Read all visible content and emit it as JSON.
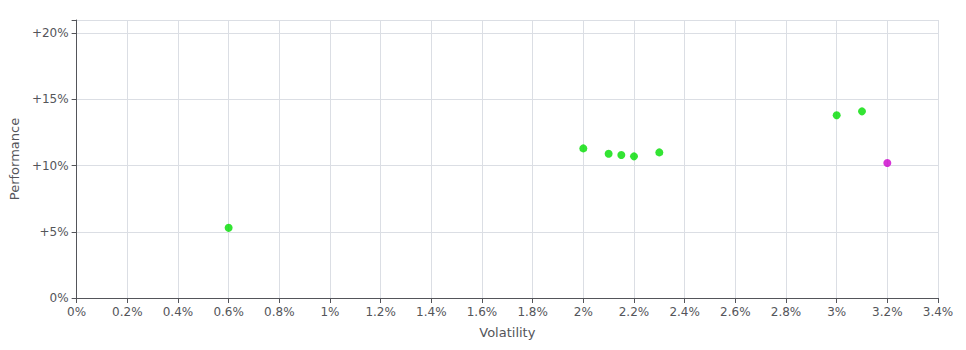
{
  "chart_data": {
    "type": "scatter",
    "xlabel": "Volatility",
    "ylabel": "Performance",
    "xlim": [
      0,
      0.034
    ],
    "ylim": [
      0,
      0.21
    ],
    "xticks": [
      {
        "value": 0,
        "label": "0%"
      },
      {
        "value": 0.002,
        "label": "0.2%"
      },
      {
        "value": 0.004,
        "label": "0.4%"
      },
      {
        "value": 0.006,
        "label": "0.6%"
      },
      {
        "value": 0.008,
        "label": "0.8%"
      },
      {
        "value": 0.01,
        "label": "1%"
      },
      {
        "value": 0.012,
        "label": "1.2%"
      },
      {
        "value": 0.014,
        "label": "1.4%"
      },
      {
        "value": 0.016,
        "label": "1.6%"
      },
      {
        "value": 0.018,
        "label": "1.8%"
      },
      {
        "value": 0.02,
        "label": "2%"
      },
      {
        "value": 0.022,
        "label": "2.2%"
      },
      {
        "value": 0.024,
        "label": "2.4%"
      },
      {
        "value": 0.026,
        "label": "2.6%"
      },
      {
        "value": 0.028,
        "label": "2.8%"
      },
      {
        "value": 0.03,
        "label": "3%"
      },
      {
        "value": 0.032,
        "label": "3.2%"
      },
      {
        "value": 0.034,
        "label": "3.4%"
      }
    ],
    "yticks": [
      {
        "value": 0,
        "label": "0%"
      },
      {
        "value": 0.05,
        "label": "+5%"
      },
      {
        "value": 0.1,
        "label": "+10%"
      },
      {
        "value": 0.15,
        "label": "+15%"
      },
      {
        "value": 0.2,
        "label": "+20%"
      }
    ],
    "grid": true,
    "series": [
      {
        "color": "#00dd00",
        "x": [
          0.006,
          0.02,
          0.021,
          0.0215,
          0.022,
          0.023,
          0.03,
          0.031
        ],
        "values": [
          0.053,
          0.113,
          0.109,
          0.108,
          0.107,
          0.11,
          0.138,
          0.141
        ]
      },
      {
        "color": "#cc00cc",
        "x": [
          0.032
        ],
        "values": [
          0.102
        ]
      }
    ]
  }
}
